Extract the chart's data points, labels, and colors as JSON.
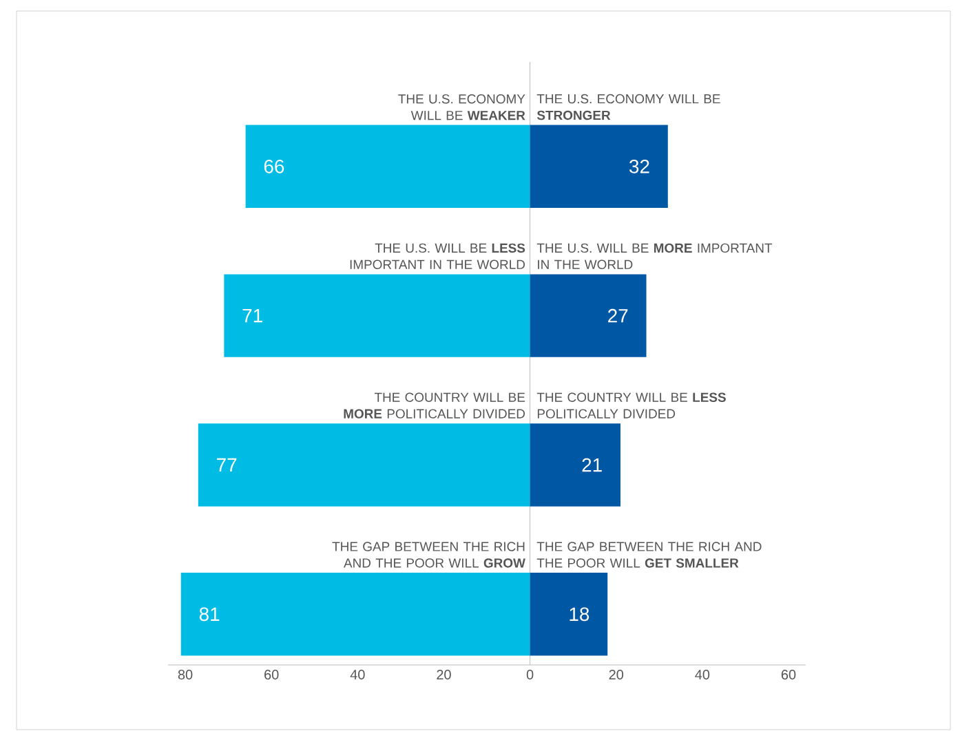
{
  "chart_data": {
    "type": "bar",
    "orientation": "horizontal",
    "categories": [
      "THE U.S. ECONOMY WILL BE **WEAKER**",
      "THE U.S. WILL BE **LESS** IMPORTANT IN THE WORLD",
      "THE COUNTRY WILL BE **MORE** POLITICALLY DIVIDED",
      "THE GAP BETWEEN THE RICH AND THE POOR WILL **GROW**"
    ],
    "series": [
      {
        "color": "#00bce4",
        "base": [
          -66,
          -71,
          -77,
          -81
        ],
        "values": [
          66,
          71,
          77,
          81
        ]
      },
      {
        "color": "#0057a4",
        "base": [
          0,
          0,
          0,
          0
        ],
        "values": [
          32,
          27,
          21,
          18
        ]
      }
    ],
    "data_labels": true,
    "annotations": [
      "THE U.S. ECONOMY WILL BE **STRONGER**",
      "THE U.S. WILL BE **MORE** IMPORTANT IN THE WORLD",
      "THE COUNTRY WILL BE **LESS** POLITICALLY DIVIDED",
      "THE GAP BETWEEN THE RICH AND THE POOR WILL **GET SMALLER**"
    ],
    "xlim": [
      -84,
      64
    ],
    "xticks": [
      {
        "value": -80,
        "label": "80"
      },
      {
        "value": -60,
        "label": "60"
      },
      {
        "value": -40,
        "label": "40"
      },
      {
        "value": -20,
        "label": "20"
      },
      0,
      20,
      40,
      60
    ]
  }
}
